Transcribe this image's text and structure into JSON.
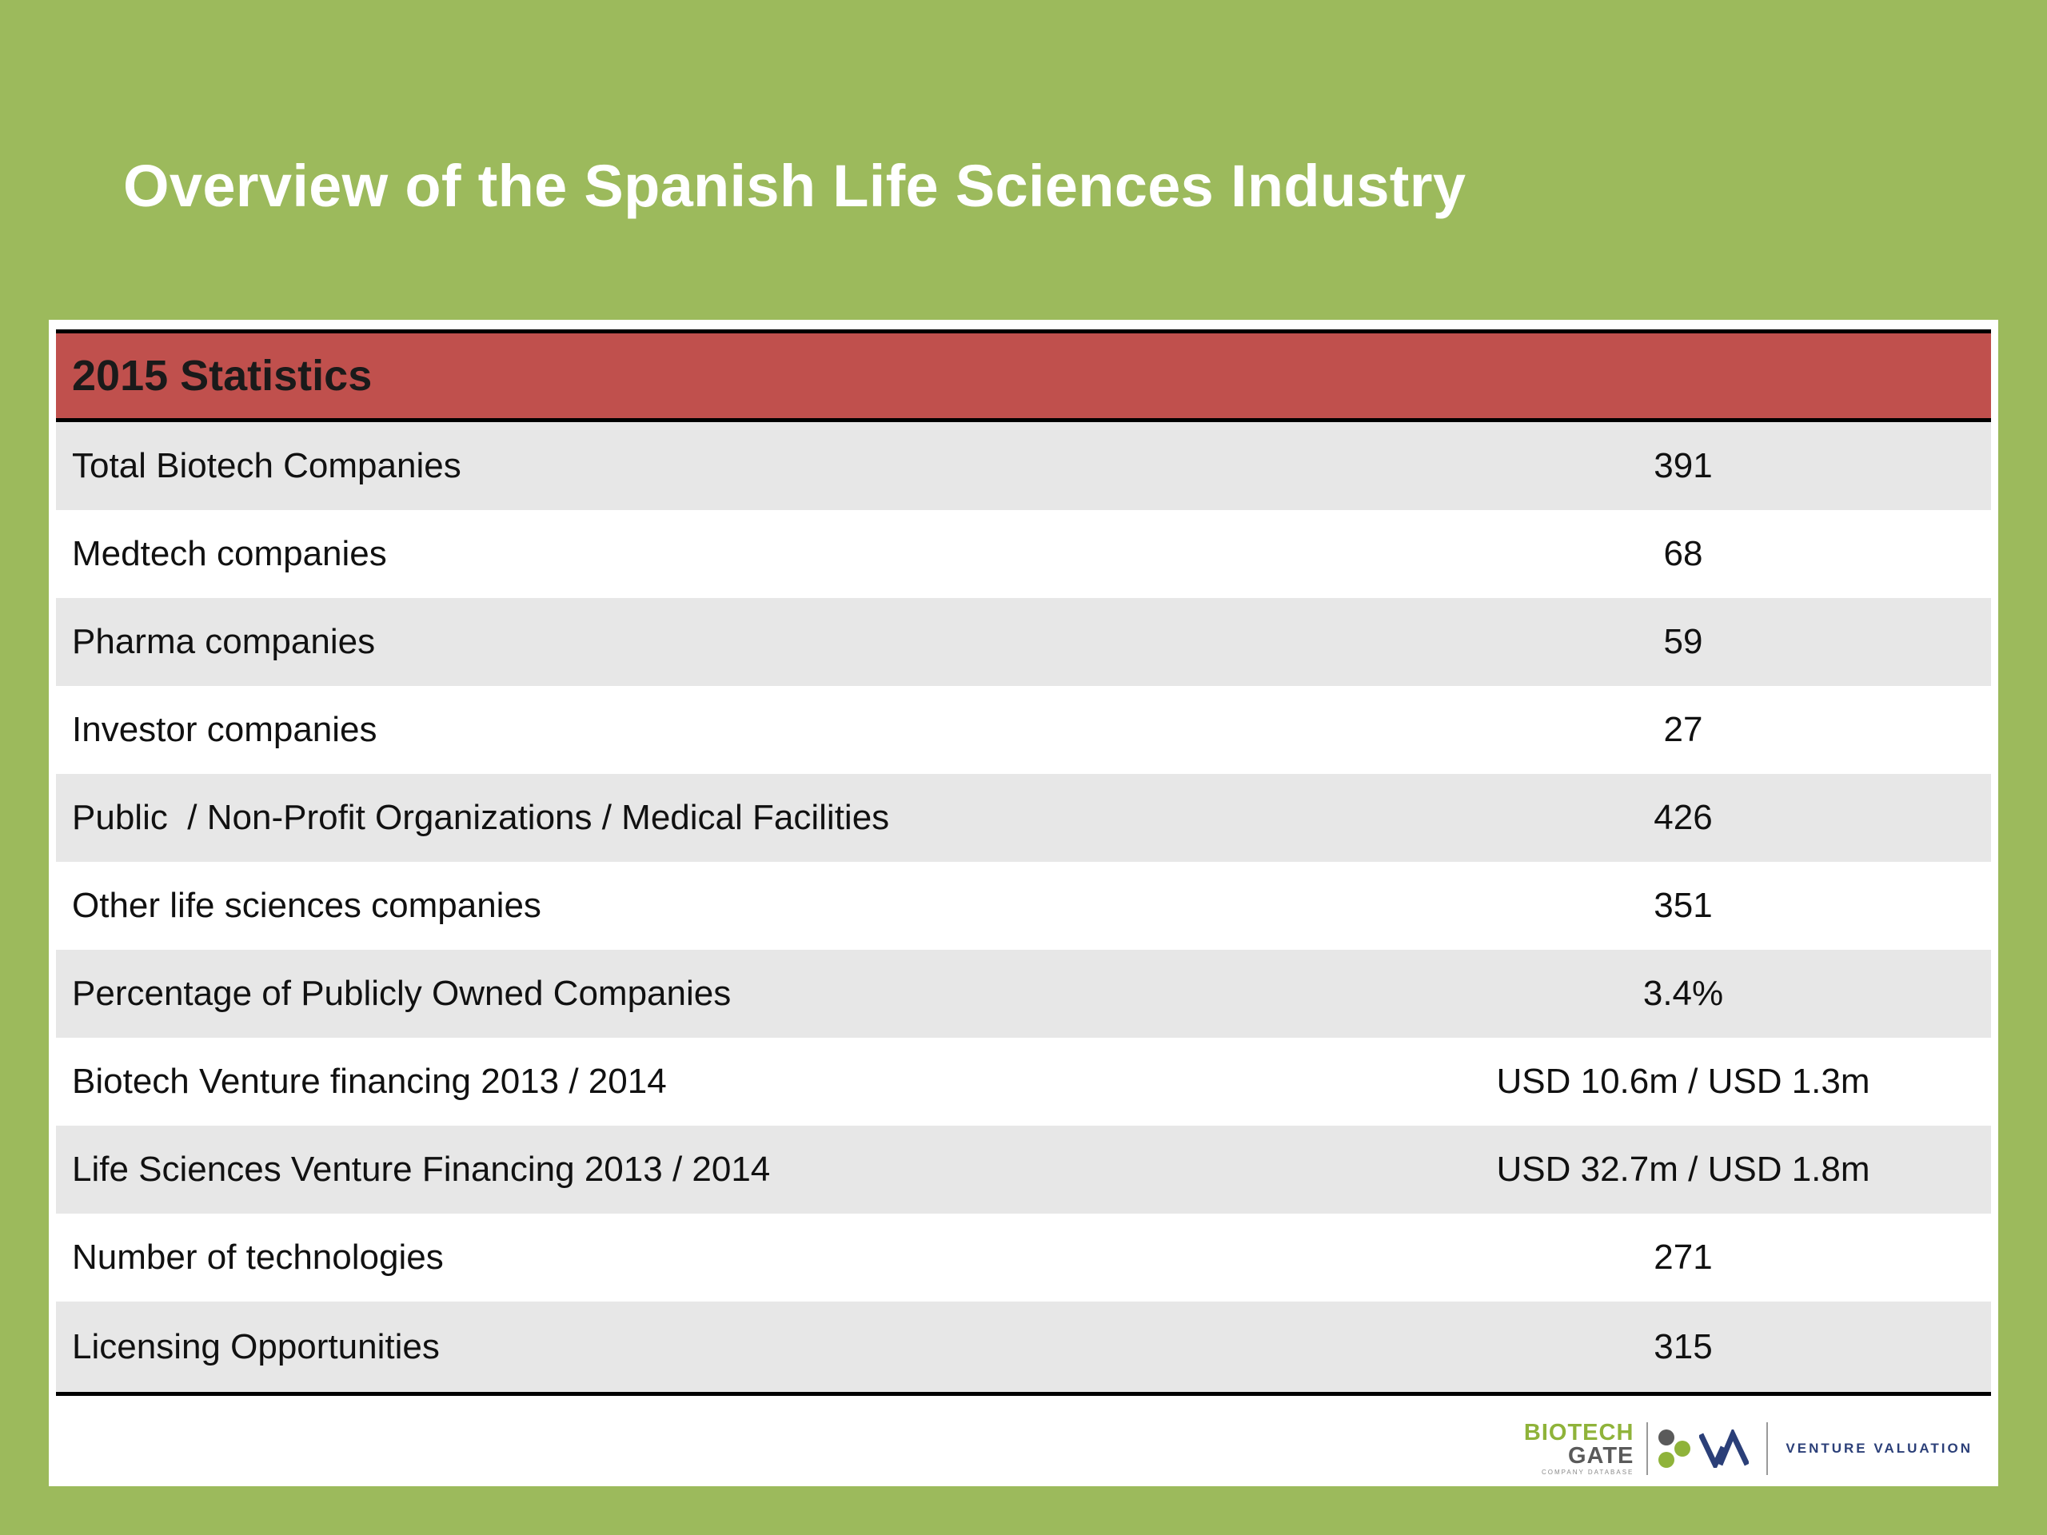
{
  "slide": {
    "title": "Overview of the Spanish Life Sciences Industry"
  },
  "table": {
    "header": "2015 Statistics",
    "rows": [
      {
        "label": "Total Biotech Companies",
        "value": "391"
      },
      {
        "label": "Medtech companies",
        "value": "68"
      },
      {
        "label": "Pharma companies",
        "value": "59"
      },
      {
        "label": "Investor companies",
        "value": "27"
      },
      {
        "label": "Public  / Non-Profit Organizations / Medical Facilities",
        "value": "426"
      },
      {
        "label": "Other life sciences companies",
        "value": "351"
      },
      {
        "label": "Percentage of Publicly Owned Companies",
        "value": "3.4%"
      },
      {
        "label": "Biotech Venture financing 2013 / 2014",
        "value": "USD 10.6m / USD 1.3m"
      },
      {
        "label": "Life Sciences Venture Financing 2013 / 2014",
        "value": "USD 32.7m / USD 1.8m"
      },
      {
        "label": "Number of technologies",
        "value": "271"
      },
      {
        "label": "Licensing Opportunities",
        "value": "315"
      }
    ]
  },
  "logos": {
    "biotech_gate_line1": "BIOTECH",
    "biotech_gate_line2": "GATE",
    "biotech_gate_sub": "COMPANY DATABASE",
    "venture_valuation": "VENTURE VALUATION"
  },
  "colors": {
    "background_green": "#9cba5c",
    "header_red": "#c0504d",
    "stripe_gray": "#e7e7e7",
    "logo_green": "#8fb33a",
    "logo_navy": "#2b3f78"
  }
}
